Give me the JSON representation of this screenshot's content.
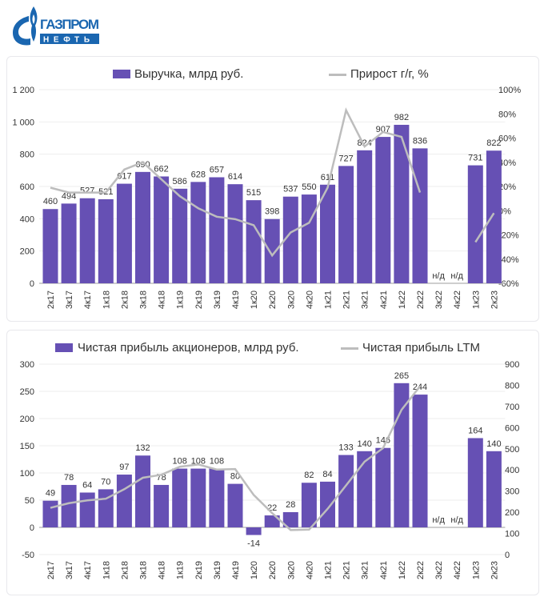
{
  "logo": {
    "line1": "ГАЗПРОМ",
    "line2": "НЕФТЬ"
  },
  "colors": {
    "bar": "#6650b4",
    "line": "#bdbdbd",
    "logo": "#1a66b0"
  },
  "chart_data": [
    {
      "type": "bar",
      "categories": [
        "2к17",
        "3к17",
        "4к17",
        "1к18",
        "2к18",
        "3к18",
        "4к18",
        "1к19",
        "2к19",
        "3к19",
        "4к19",
        "1к20",
        "2к20",
        "3к20",
        "4к20",
        "1к21",
        "2к21",
        "3к21",
        "4к21",
        "1к22",
        "2к22",
        "3к22",
        "4к22",
        "1к23",
        "2к23"
      ],
      "series": [
        {
          "name": "Выручка, млрд руб.",
          "type": "bar",
          "axis": "left",
          "values": [
            460,
            494,
            527,
            521,
            617,
            690,
            662,
            586,
            628,
            657,
            614,
            515,
            398,
            537,
            550,
            611,
            727,
            824,
            907,
            982,
            836,
            null,
            null,
            731,
            822
          ]
        },
        {
          "name": "Прирост г/г, %",
          "type": "line",
          "axis": "right",
          "values": [
            19,
            15,
            15,
            15,
            34,
            40,
            26,
            12,
            2,
            -5,
            -7,
            -12,
            -37,
            -18,
            -10,
            19,
            83,
            53,
            65,
            61,
            15,
            null,
            null,
            -26,
            -2
          ]
        }
      ],
      "missing_label": "н/д",
      "left_axis": {
        "ylim": [
          0,
          1200
        ],
        "ticks": [
          "0",
          "200",
          "400",
          "600",
          "800",
          "1 000",
          "1 200"
        ]
      },
      "right_axis": {
        "ylim": [
          -60,
          100
        ],
        "ticks": [
          "-60%",
          "-40%",
          "-20%",
          "0%",
          "20%",
          "40%",
          "60%",
          "80%",
          "100%"
        ]
      },
      "grid": true,
      "legend": "top"
    },
    {
      "type": "bar",
      "categories": [
        "2к17",
        "3к17",
        "4к17",
        "1к18",
        "2к18",
        "3к18",
        "4к18",
        "1к19",
        "2к19",
        "3к19",
        "4к19",
        "1к20",
        "2к20",
        "3к20",
        "4к20",
        "1к21",
        "2к21",
        "3к21",
        "4к21",
        "1к22",
        "2к22",
        "3к22",
        "4к22",
        "1к23",
        "2к23"
      ],
      "series": [
        {
          "name": "Чистая прибыль акционеров, млрд руб.",
          "type": "bar",
          "axis": "left",
          "values": [
            49,
            78,
            64,
            70,
            97,
            132,
            78,
            108,
            108,
            108,
            80,
            -14,
            22,
            28,
            82,
            84,
            133,
            140,
            146,
            265,
            244,
            null,
            null,
            164,
            140
          ]
        },
        {
          "name": "Чистая прибыль LTM",
          "type": "line",
          "axis": "right",
          "values": [
            221,
            243,
            256,
            264,
            309,
            363,
            377,
            415,
            426,
            402,
            404,
            282,
            196,
            116,
            118,
            216,
            327,
            439,
            503,
            684,
            795,
            null,
            null,
            null,
            null
          ]
        }
      ],
      "missing_label": "н/д",
      "left_axis": {
        "ylim": [
          -50,
          300
        ],
        "ticks": [
          "-50",
          "0",
          "50",
          "100",
          "150",
          "200",
          "250",
          "300"
        ]
      },
      "right_axis": {
        "ylim": [
          0,
          900
        ],
        "ticks": [
          "0",
          "100",
          "200",
          "300",
          "400",
          "500",
          "600",
          "700",
          "800",
          "900"
        ]
      },
      "grid": true,
      "legend": "top"
    }
  ]
}
